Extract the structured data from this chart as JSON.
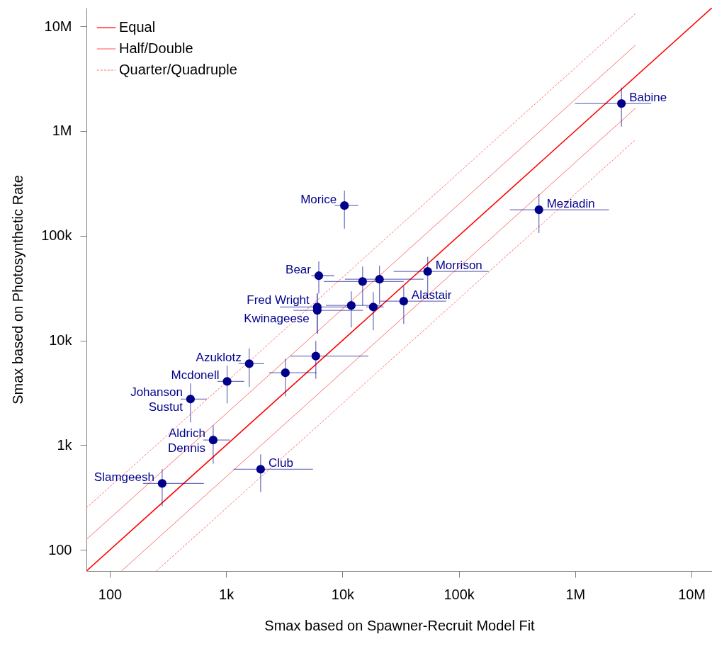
{
  "chart_data": {
    "type": "scatter",
    "xlabel": "Smax based on Spawner-Recruit Model Fit",
    "ylabel": "Smax based on Photosynthetic Rate",
    "log": "xy",
    "xlim": [
      63,
      15000000
    ],
    "ylim": [
      63,
      15000000
    ],
    "xticks": [
      100,
      {
        "value": 1000,
        "label": "1k"
      },
      {
        "value": 10000,
        "label": "10k"
      },
      {
        "value": 100000,
        "label": "100k"
      },
      {
        "value": 1000000,
        "label": "1M"
      },
      {
        "value": 10000000,
        "label": "10M"
      }
    ],
    "yticks": [
      100,
      {
        "value": 1000,
        "label": "1k"
      },
      {
        "value": 10000,
        "label": "10k"
      },
      {
        "value": 100000,
        "label": "100k"
      },
      {
        "value": 1000000,
        "label": "1M"
      },
      {
        "value": 10000000,
        "label": "10M"
      }
    ],
    "legend": "top left",
    "series": [
      {
        "name": "Equal",
        "type": "line",
        "color": "#ff0000",
        "line_style": "solid",
        "x": [
          63,
          15000000
        ],
        "values": [
          63,
          15000000
        ]
      },
      {
        "name": "Half/Double",
        "type": "line",
        "color": "#ff7070",
        "line_style": "solid",
        "x": [
          63,
          3300000
        ],
        "values": [
          126,
          6600000
        ]
      },
      {
        "type": "line",
        "color": "#ff7070",
        "line_style": "solid",
        "x": [
          126,
          3300000
        ],
        "values": [
          63,
          1650000
        ]
      },
      {
        "name": "Quarter/Quadruple",
        "type": "line",
        "color": "#ff7070",
        "line_style": "dashed",
        "x": [
          63,
          3300000
        ],
        "values": [
          252,
          13200000
        ]
      },
      {
        "type": "line",
        "color": "#ff7070",
        "line_style": "dashed",
        "x": [
          252,
          3300000
        ],
        "values": [
          63,
          825000
        ]
      },
      {
        "color": "#00008b",
        "marker": "circle",
        "x": [
          2500000,
          488000,
          10400,
          6260,
          54000,
          14900,
          20800,
          6070,
          6070,
          11900,
          18400,
          33600,
          5900,
          3230,
          1580,
          1020,
          494,
          774,
          1980,
          282
        ],
        "values": [
          1830000,
          177000,
          194000,
          41500,
          45600,
          36600,
          38400,
          20900,
          19400,
          21600,
          20900,
          23700,
          7100,
          4920,
          6000,
          4070,
          2760,
          1120,
          590,
          432
        ],
        "xerrors": [
          [
            1000000,
            4500000
          ],
          [
            275000,
            1950000
          ],
          [
            8600,
            13700
          ],
          [
            5400,
            8500
          ],
          [
            27500,
            180000
          ],
          [
            6900,
            33600
          ],
          [
            10500,
            49700
          ],
          [
            2900,
            12000
          ],
          [
            3800,
            15000
          ],
          [
            7200,
            22000
          ],
          [
            16000,
            22600
          ],
          [
            21000,
            78000
          ],
          [
            3560,
            16700
          ],
          [
            2340,
            5980
          ],
          [
            1280,
            2120
          ],
          [
            842,
            1430
          ],
          [
            406,
            683
          ],
          [
            635,
            1080
          ],
          [
            1160,
            5580
          ],
          [
            193,
            644
          ]
        ],
        "errors": [
          [
            1100000,
            2600000
          ],
          [
            106000,
            250000
          ],
          [
            117000,
            270000
          ],
          [
            28100,
            56800
          ],
          [
            28000,
            63000
          ],
          [
            21600,
            50800
          ],
          [
            22300,
            51700
          ],
          [
            11600,
            28100
          ],
          [
            11600,
            28100
          ],
          [
            13300,
            29500
          ],
          [
            12500,
            29000
          ],
          [
            14400,
            32900
          ],
          [
            4300,
            9900
          ],
          [
            2940,
            6700
          ],
          [
            3600,
            8400
          ],
          [
            2510,
            5740
          ],
          [
            1650,
            3890
          ],
          [
            668,
            1550
          ],
          [
            359,
            819
          ],
          [
            262,
            590
          ]
        ]
      }
    ],
    "annotations": [
      {
        "text": "Babine",
        "x": 2500000,
        "y": 1830000
      },
      {
        "text": "Meziadin",
        "x": 488000,
        "y": 177000
      },
      {
        "text": "Morice",
        "x": 10400,
        "y": 194000
      },
      {
        "text": "Bear",
        "x": 6260,
        "y": 41500
      },
      {
        "text": "Morrison",
        "x": 54000,
        "y": 45600
      },
      {
        "text": "Fred Wright",
        "x": 6070,
        "y": 20900
      },
      {
        "text": "Kwinageese",
        "x": 6070,
        "y": 19400
      },
      {
        "text": "Alastair",
        "x": 33600,
        "y": 23700
      },
      {
        "text": "Azuklotz",
        "x": 1580,
        "y": 6000
      },
      {
        "text": "Mcdonell",
        "x": 1020,
        "y": 4070
      },
      {
        "text": "Johanson",
        "x": 494,
        "y": 2760
      },
      {
        "text": "Sustut",
        "x": 494,
        "y": 2760
      },
      {
        "text": "Aldrich",
        "x": 774,
        "y": 1120
      },
      {
        "text": "Dennis",
        "x": 774,
        "y": 1120
      },
      {
        "text": "Club",
        "x": 1980,
        "y": 590
      },
      {
        "text": "Slamgeesh",
        "x": 282,
        "y": 432
      }
    ]
  }
}
